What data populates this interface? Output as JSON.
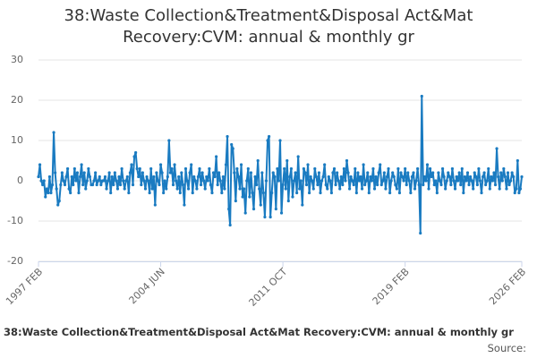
{
  "chart_data": {
    "type": "line",
    "title": "38:Waste Collection&Treatment&Disposal Act&Mat Recovery:CVM: annual & monthly gr",
    "footer": "38:Waste Collection&Treatment&Disposal Act&Mat Recovery:CVM: annual & monthly gr",
    "source": "Source:",
    "color": "#1a7bc1",
    "grid": true,
    "ylim": [
      -20,
      30
    ],
    "yticks": [
      -20,
      -10,
      0,
      10,
      20,
      30
    ],
    "categories": [
      "1997 FEB",
      null,
      null,
      null,
      null,
      null,
      null,
      null,
      null,
      null,
      null,
      null,
      null,
      null,
      null,
      null,
      null,
      null,
      null,
      null,
      null,
      null,
      null,
      null,
      null,
      null,
      null,
      null,
      null,
      null,
      null,
      null,
      null,
      null,
      null,
      null,
      null,
      null,
      null,
      null,
      null,
      null,
      null,
      null,
      null,
      null,
      null,
      null,
      null,
      null,
      null,
      null,
      null,
      null,
      null,
      null,
      null,
      null,
      null,
      null,
      null,
      null,
      null,
      null,
      null,
      null,
      null,
      null,
      null,
      null,
      null,
      null,
      null,
      null,
      null,
      null,
      null,
      null,
      null,
      null,
      null,
      null,
      null,
      null,
      null,
      null,
      null,
      null,
      "2004 JUN",
      null,
      null,
      null,
      null,
      null,
      null,
      null,
      null,
      null,
      null,
      null,
      null,
      null,
      null,
      null,
      null,
      null,
      null,
      null,
      null,
      null,
      null,
      null,
      null,
      null,
      null,
      null,
      null,
      null,
      null,
      null,
      null,
      null,
      null,
      null,
      null,
      null,
      null,
      null,
      null,
      null,
      null,
      null,
      null,
      null,
      null,
      null,
      null,
      null,
      null,
      null,
      null,
      null,
      null,
      null,
      null,
      null,
      null,
      null,
      null,
      null,
      null,
      null,
      null,
      null,
      null,
      null,
      null,
      null,
      null,
      null,
      null,
      null,
      null,
      null,
      null,
      null,
      null,
      null,
      null,
      null,
      null,
      null,
      null,
      null,
      null,
      null,
      "2011 OCT",
      null,
      null,
      null,
      null,
      null,
      null,
      null,
      null,
      null,
      null,
      null,
      null,
      null,
      null,
      null,
      null,
      null,
      null,
      null,
      null,
      null,
      null,
      null,
      null,
      null,
      null,
      null,
      null,
      null,
      null,
      null,
      null,
      null,
      null,
      null,
      null,
      null,
      null,
      null,
      null,
      null,
      null,
      null,
      null,
      null,
      null,
      null,
      null,
      null,
      null,
      null,
      null,
      null,
      null,
      null,
      null,
      null,
      null,
      null,
      null,
      null,
      null,
      null,
      null,
      null,
      null,
      null,
      null,
      null,
      null,
      null,
      null,
      null,
      null,
      null,
      null,
      null,
      null,
      null,
      null,
      null,
      null,
      null,
      null,
      null,
      null,
      null,
      "2019 FEB",
      null,
      null,
      null,
      null,
      null,
      null,
      null,
      null,
      null,
      null,
      null,
      null,
      null,
      null,
      null,
      null,
      null,
      null,
      null,
      null,
      null,
      null,
      null,
      null,
      null,
      null,
      null,
      null,
      null,
      null,
      null,
      null,
      null,
      null,
      null,
      null,
      null,
      null,
      null,
      null,
      null,
      null,
      null,
      null,
      null,
      null,
      null,
      null,
      null,
      null,
      null,
      null,
      null,
      null,
      null,
      null,
      null,
      null,
      null,
      null,
      null,
      null,
      null,
      null,
      null,
      null,
      null,
      null,
      null,
      null,
      null,
      null,
      null,
      null,
      null,
      null,
      null,
      null,
      null,
      null,
      null,
      null,
      null,
      "2026 FEB"
    ],
    "values": [
      1,
      4,
      0,
      -1,
      0,
      -4,
      -2,
      -3,
      1,
      -3,
      -1,
      12,
      2,
      -2,
      -6,
      -5,
      -1,
      2,
      0,
      -1,
      1,
      3,
      -2,
      -3,
      1,
      -1,
      3,
      0,
      2,
      -3,
      1,
      4,
      -1,
      2,
      -2,
      0,
      3,
      1,
      -1,
      -1,
      0,
      2,
      -1,
      0,
      1,
      -1,
      0,
      0,
      1,
      -2,
      0,
      2,
      -3,
      1,
      -1,
      2,
      0,
      -2,
      1,
      -1,
      3,
      0,
      -2,
      0,
      1,
      -3,
      2,
      4,
      -1,
      6,
      7,
      3,
      1,
      3,
      -1,
      2,
      0,
      -2,
      1,
      0,
      -3,
      3,
      -2,
      1,
      -6,
      2,
      0,
      -1,
      4,
      2,
      -3,
      0,
      -2,
      1,
      10,
      2,
      3,
      -1,
      4,
      0,
      -2,
      1,
      -3,
      2,
      -1,
      -6,
      3,
      0,
      -2,
      2,
      4,
      -3,
      1,
      0,
      -2,
      1,
      3,
      -1,
      2,
      0,
      -2,
      1,
      0,
      3,
      -1,
      -3,
      2,
      1,
      6,
      -1,
      2,
      0,
      -3,
      1,
      -2,
      4,
      11,
      -7,
      -11,
      9,
      8,
      2,
      -5,
      3,
      1,
      -2,
      4,
      -4,
      -2,
      -8,
      0,
      3,
      -4,
      2,
      -3,
      -7,
      1,
      -1,
      5,
      -2,
      -6,
      2,
      -3,
      -9,
      0,
      10,
      11,
      -9,
      -3,
      2,
      1,
      -7,
      3,
      0,
      10,
      -8,
      -1,
      3,
      -2,
      5,
      -5,
      1,
      3,
      -4,
      0,
      2,
      -3,
      6,
      -2,
      0,
      -6,
      3,
      2,
      -1,
      4,
      -3,
      1,
      0,
      -2,
      3,
      1,
      -1,
      2,
      -3,
      0,
      1,
      4,
      -1,
      -2,
      1,
      0,
      -3,
      2,
      3,
      -1,
      2,
      0,
      -2,
      1,
      -1,
      3,
      0,
      5,
      2,
      -2,
      1,
      0,
      -1,
      3,
      -3,
      2,
      0,
      1,
      -2,
      4,
      -1,
      0,
      2,
      -3,
      1,
      0,
      3,
      -2,
      1,
      -1,
      2,
      4,
      -1,
      0,
      2,
      -2,
      1,
      3,
      -3,
      0,
      2,
      1,
      -1,
      -2,
      3,
      -3,
      2,
      1,
      0,
      3,
      -1,
      2,
      0,
      -3,
      1,
      2,
      -2,
      0,
      3,
      -1,
      -13,
      21,
      -1,
      1,
      0,
      4,
      -2,
      3,
      1,
      2,
      -1,
      0,
      -3,
      2,
      0,
      -1,
      3,
      1,
      -2,
      0,
      2,
      1,
      -1,
      3,
      0,
      -2,
      1,
      0,
      2,
      -1,
      3,
      -3,
      1,
      0,
      2,
      -1,
      1,
      0,
      -2,
      2,
      1,
      -1,
      3,
      0,
      -3,
      1,
      2,
      -1,
      0,
      3,
      -2,
      1,
      0,
      2,
      -1,
      8,
      1,
      -2,
      2,
      0,
      3,
      1,
      -2,
      2,
      -1,
      0,
      2,
      1,
      -3,
      -2,
      5,
      -3,
      -2,
      1
    ]
  }
}
